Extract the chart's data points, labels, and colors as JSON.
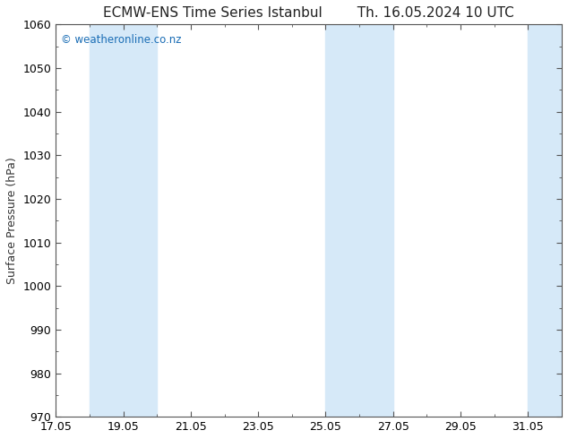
{
  "title_left": "ECMW-ENS Time Series Istanbul",
  "title_right": "Th. 16.05.2024 10 UTC",
  "ylabel": "Surface Pressure (hPa)",
  "ylim": [
    970,
    1060
  ],
  "yticks": [
    970,
    980,
    990,
    1000,
    1010,
    1020,
    1030,
    1040,
    1050,
    1060
  ],
  "xlim_start": 17.0,
  "xlim_end": 32.0,
  "xtick_labels": [
    "17.05",
    "19.05",
    "21.05",
    "23.05",
    "25.05",
    "27.05",
    "29.05",
    "31.05"
  ],
  "xtick_days": [
    17,
    19,
    21,
    23,
    25,
    27,
    29,
    31
  ],
  "shaded_bands": [
    {
      "start_day": 18,
      "end_day": 20,
      "color": "#d6e9f8"
    },
    {
      "start_day": 25,
      "end_day": 27,
      "color": "#d6e9f8"
    },
    {
      "start_day": 31,
      "end_day": 33,
      "color": "#d6e9f8"
    }
  ],
  "watermark": "© weatheronline.co.nz",
  "watermark_color": "#1a6db5",
  "background_color": "#ffffff",
  "title_fontsize": 11,
  "ylabel_fontsize": 9,
  "tick_fontsize": 9,
  "spine_color": "#555555",
  "tick_color": "#333333"
}
